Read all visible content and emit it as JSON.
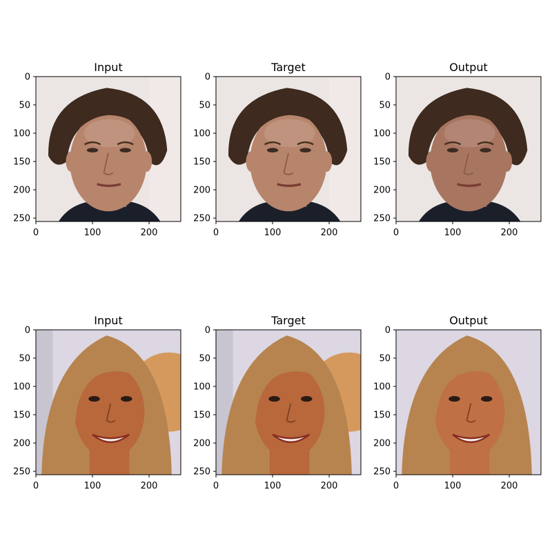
{
  "figure": {
    "rows": [
      {
        "panels": [
          {
            "title": "Input",
            "subject": "man",
            "variant": "photo"
          },
          {
            "title": "Target",
            "subject": "man",
            "variant": "photo"
          },
          {
            "title": "Output",
            "subject": "man",
            "variant": "generated"
          }
        ]
      },
      {
        "panels": [
          {
            "title": "Input",
            "subject": "woman",
            "variant": "photo"
          },
          {
            "title": "Target",
            "subject": "woman",
            "variant": "photo"
          },
          {
            "title": "Output",
            "subject": "woman",
            "variant": "generated"
          }
        ]
      }
    ],
    "axes": {
      "xlim": [
        0,
        256
      ],
      "ylim": [
        256,
        0
      ],
      "x_ticks": [
        0,
        100,
        200
      ],
      "y_ticks": [
        0,
        50,
        100,
        150,
        200,
        250
      ]
    }
  },
  "colors": {
    "man_bg": "#ebe6e3",
    "man_hair": "#3e2a1e",
    "man_skin": "#b7846c",
    "man_skin_generated": "#a87561",
    "man_jacket": "#1b1f2a",
    "woman_bg": "#dcd7e2",
    "woman_hair": "#b7844f",
    "woman_skin": "#b8683a",
    "woman_skin_generated": "#c07045",
    "woman_backdrop_accent": "#d48a3c"
  }
}
